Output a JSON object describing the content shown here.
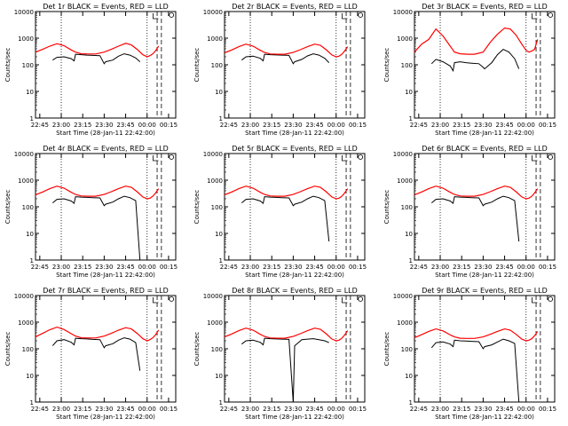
{
  "colors": {
    "events": "#000000",
    "lld": "#ff0000",
    "axes": "#000000",
    "background": "#ffffff"
  },
  "figure": {
    "xlabel": "Start Time (28-Jan-11 22:42:00)",
    "ylabel": "Counts/sec",
    "x_ticks": [
      "22:45",
      "23:00",
      "23:15",
      "23:30",
      "23:45",
      "00:00",
      "00:15"
    ],
    "y_ticks": [
      "1",
      "10",
      "100",
      "1000",
      "10000"
    ],
    "legend_text": "BLACK = Events, RED = LLD"
  },
  "chart_data": [
    {
      "type": "line",
      "title": "Det 1r BLACK = Events, RED = LLD",
      "detector": "1r",
      "xlabel": "Start Time (28-Jan-11 22:42:00)",
      "ylabel": "Counts/sec",
      "x_unit": "minutes after 22:42",
      "xlim": [
        0,
        98
      ],
      "ylim": [
        1,
        10000
      ],
      "y_log": true,
      "series": [
        {
          "name": "Events",
          "color": "#000000",
          "x": [
            12,
            15,
            20,
            25,
            27,
            28,
            32,
            36,
            40,
            45,
            48,
            49,
            54,
            58,
            62,
            66,
            70,
            73
          ],
          "values": [
            150,
            190,
            200,
            170,
            140,
            250,
            240,
            230,
            225,
            220,
            110,
            130,
            150,
            210,
            260,
            230,
            180,
            130
          ]
        },
        {
          "name": "LLD",
          "color": "#ff0000",
          "x": [
            0,
            5,
            10,
            15,
            20,
            25,
            28,
            32,
            37,
            42,
            48,
            53,
            58,
            63,
            67,
            71,
            75,
            78,
            80,
            82,
            84,
            86
          ],
          "values": [
            300,
            380,
            500,
            620,
            520,
            360,
            300,
            260,
            255,
            255,
            300,
            380,
            500,
            640,
            560,
            380,
            240,
            200,
            220,
            260,
            340,
            500
          ]
        }
      ],
      "event_gaps": [
        {
          "x": 85,
          "drop_to": null
        },
        {
          "x": 86,
          "drop_to": null
        }
      ],
      "markers_dotted": [
        18,
        78
      ],
      "markers_dashed": [
        85,
        88
      ]
    },
    {
      "type": "line",
      "title": "Det 2r BLACK = Events, RED = LLD",
      "detector": "2r",
      "xlabel": "Start Time (28-Jan-11 22:42:00)",
      "ylabel": "Counts/sec",
      "x_unit": "minutes after 22:42",
      "xlim": [
        0,
        98
      ],
      "ylim": [
        1,
        10000
      ],
      "y_log": true,
      "series": [
        {
          "name": "Events",
          "color": "#000000",
          "x": [
            12,
            15,
            20,
            25,
            27,
            28,
            32,
            36,
            40,
            45,
            48,
            49,
            54,
            58,
            62,
            66,
            70,
            73
          ],
          "values": [
            150,
            200,
            210,
            175,
            140,
            250,
            240,
            235,
            230,
            225,
            110,
            130,
            160,
            215,
            260,
            230,
            175,
            120
          ]
        },
        {
          "name": "LLD",
          "color": "#ff0000",
          "x": [
            0,
            5,
            10,
            15,
            20,
            25,
            28,
            32,
            37,
            42,
            48,
            53,
            58,
            63,
            67,
            71,
            75,
            78,
            80,
            82,
            84,
            86
          ],
          "values": [
            280,
            360,
            480,
            600,
            500,
            350,
            290,
            255,
            250,
            250,
            290,
            370,
            480,
            600,
            540,
            370,
            235,
            200,
            210,
            250,
            330,
            480
          ]
        }
      ],
      "markers_dotted": [
        18,
        78
      ],
      "markers_dashed": [
        85,
        88
      ]
    },
    {
      "type": "line",
      "title": "Det 3r BLACK = Events, RED = LLD",
      "detector": "3r",
      "xlabel": "Start Time (28-Jan-11 22:42:00)",
      "ylabel": "Counts/sec",
      "x_unit": "minutes after 22:42",
      "xlim": [
        0,
        98
      ],
      "ylim": [
        1,
        10000
      ],
      "y_log": true,
      "series": [
        {
          "name": "Events",
          "color": "#000000",
          "x": [
            12,
            15,
            20,
            25,
            27,
            28,
            32,
            36,
            40,
            45,
            48,
            49,
            54,
            58,
            62,
            66,
            70,
            73
          ],
          "values": [
            110,
            160,
            130,
            90,
            60,
            120,
            130,
            120,
            115,
            110,
            80,
            70,
            120,
            240,
            380,
            300,
            170,
            70
          ]
        },
        {
          "name": "LLD",
          "color": "#ff0000",
          "x": [
            0,
            5,
            10,
            15,
            20,
            25,
            28,
            32,
            37,
            42,
            48,
            53,
            58,
            63,
            67,
            71,
            75,
            78,
            80,
            82,
            84,
            86
          ],
          "values": [
            300,
            600,
            900,
            2200,
            1200,
            500,
            300,
            260,
            250,
            250,
            300,
            700,
            1400,
            2400,
            2200,
            1300,
            600,
            350,
            300,
            330,
            380,
            900
          ]
        }
      ],
      "markers_dotted": [
        18,
        78
      ],
      "markers_dashed": [
        85,
        88
      ]
    },
    {
      "type": "line",
      "title": "Det 4r BLACK = Events, RED = LLD",
      "detector": "4r",
      "xlabel": "Start Time (28-Jan-11 22:42:00)",
      "ylabel": "Counts/sec",
      "x_unit": "minutes after 22:42",
      "xlim": [
        0,
        98
      ],
      "ylim": [
        1,
        10000
      ],
      "y_log": true,
      "series": [
        {
          "name": "Events",
          "color": "#000000",
          "x": [
            12,
            15,
            20,
            25,
            27,
            28,
            32,
            36,
            40,
            45,
            48,
            49,
            54,
            58,
            62,
            66,
            70,
            73
          ],
          "values": [
            140,
            190,
            200,
            165,
            135,
            240,
            230,
            225,
            220,
            215,
            110,
            125,
            150,
            200,
            250,
            220,
            170,
            1
          ]
        },
        {
          "name": "LLD",
          "color": "#ff0000",
          "x": [
            0,
            5,
            10,
            15,
            20,
            25,
            28,
            32,
            37,
            42,
            48,
            53,
            58,
            63,
            67,
            71,
            75,
            78,
            80,
            82,
            84,
            86
          ],
          "values": [
            280,
            360,
            480,
            600,
            500,
            350,
            290,
            255,
            250,
            250,
            290,
            370,
            480,
            600,
            540,
            370,
            235,
            200,
            210,
            250,
            330,
            480
          ]
        }
      ],
      "markers_dotted": [
        18,
        78
      ],
      "markers_dashed": [
        85,
        88
      ]
    },
    {
      "type": "line",
      "title": "Det 5r BLACK = Events, RED = LLD",
      "detector": "5r",
      "xlabel": "Start Time (28-Jan-11 22:42:00)",
      "ylabel": "Counts/sec",
      "x_unit": "minutes after 22:42",
      "xlim": [
        0,
        98
      ],
      "ylim": [
        1,
        10000
      ],
      "y_log": true,
      "series": [
        {
          "name": "Events",
          "color": "#000000",
          "x": [
            12,
            15,
            20,
            25,
            27,
            28,
            32,
            36,
            40,
            45,
            48,
            49,
            54,
            58,
            62,
            66,
            70,
            73
          ],
          "values": [
            140,
            190,
            200,
            165,
            135,
            240,
            230,
            225,
            220,
            215,
            110,
            125,
            150,
            200,
            250,
            220,
            170,
            5
          ]
        },
        {
          "name": "LLD",
          "color": "#ff0000",
          "x": [
            0,
            5,
            10,
            15,
            20,
            25,
            28,
            32,
            37,
            42,
            48,
            53,
            58,
            63,
            67,
            71,
            75,
            78,
            80,
            82,
            84,
            86
          ],
          "values": [
            280,
            360,
            480,
            600,
            500,
            350,
            290,
            255,
            250,
            250,
            290,
            370,
            480,
            600,
            540,
            370,
            235,
            200,
            210,
            250,
            330,
            480
          ]
        }
      ],
      "markers_dotted": [
        18,
        78
      ],
      "markers_dashed": [
        85,
        88
      ]
    },
    {
      "type": "line",
      "title": "Det 6r BLACK = Events, RED = LLD",
      "detector": "6r",
      "xlabel": "Start Time (28-Jan-11 22:42:00)",
      "ylabel": "Counts/sec",
      "x_unit": "minutes after 22:42",
      "xlim": [
        0,
        98
      ],
      "ylim": [
        1,
        10000
      ],
      "y_log": true,
      "series": [
        {
          "name": "Events",
          "color": "#000000",
          "x": [
            12,
            15,
            20,
            25,
            27,
            28,
            32,
            36,
            40,
            45,
            48,
            49,
            54,
            58,
            62,
            66,
            70,
            73
          ],
          "values": [
            140,
            190,
            200,
            165,
            135,
            240,
            230,
            225,
            220,
            215,
            110,
            125,
            150,
            200,
            250,
            220,
            170,
            5
          ]
        },
        {
          "name": "LLD",
          "color": "#ff0000",
          "x": [
            0,
            5,
            10,
            15,
            20,
            25,
            28,
            32,
            37,
            42,
            48,
            53,
            58,
            63,
            67,
            71,
            75,
            78,
            80,
            82,
            84,
            86
          ],
          "values": [
            280,
            360,
            480,
            600,
            500,
            350,
            290,
            255,
            250,
            250,
            290,
            370,
            480,
            600,
            540,
            370,
            235,
            200,
            210,
            250,
            330,
            480
          ]
        }
      ],
      "markers_dotted": [
        18,
        78
      ],
      "markers_dashed": [
        85,
        88
      ]
    },
    {
      "type": "line",
      "title": "Det 7r BLACK = Events, RED = LLD",
      "detector": "7r",
      "xlabel": "Start Time (28-Jan-11 22:42:00)",
      "ylabel": "Counts/sec",
      "x_unit": "minutes after 22:42",
      "xlim": [
        0,
        98
      ],
      "ylim": [
        1,
        10000
      ],
      "y_log": true,
      "series": [
        {
          "name": "Events",
          "color": "#000000",
          "x": [
            12,
            15,
            20,
            25,
            27,
            28,
            32,
            36,
            40,
            45,
            48,
            49,
            54,
            58,
            62,
            66,
            70,
            73
          ],
          "values": [
            130,
            200,
            220,
            175,
            140,
            250,
            240,
            235,
            225,
            220,
            110,
            130,
            155,
            210,
            260,
            230,
            170,
            15
          ]
        },
        {
          "name": "LLD",
          "color": "#ff0000",
          "x": [
            0,
            5,
            10,
            15,
            20,
            25,
            28,
            32,
            37,
            42,
            48,
            53,
            58,
            63,
            67,
            71,
            75,
            78,
            80,
            82,
            84,
            86
          ],
          "values": [
            280,
            380,
            520,
            650,
            530,
            370,
            300,
            260,
            255,
            255,
            300,
            380,
            500,
            620,
            560,
            380,
            240,
            200,
            220,
            260,
            340,
            500
          ]
        }
      ],
      "markers_dotted": [
        18,
        78
      ],
      "markers_dashed": [
        85,
        88
      ]
    },
    {
      "type": "line",
      "title": "Det 8r BLACK = Events, RED = LLD",
      "detector": "8r",
      "xlabel": "Start Time (28-Jan-11 22:42:00)",
      "ylabel": "Counts/sec",
      "x_unit": "minutes after 22:42",
      "xlim": [
        0,
        98
      ],
      "ylim": [
        1,
        10000
      ],
      "y_log": true,
      "series": [
        {
          "name": "Events",
          "color": "#000000",
          "x": [
            12,
            15,
            20,
            25,
            27,
            28,
            32,
            36,
            40,
            45,
            48,
            49,
            54,
            58,
            62,
            66,
            70,
            73
          ],
          "values": [
            150,
            200,
            210,
            175,
            140,
            250,
            240,
            235,
            230,
            225,
            1,
            130,
            220,
            230,
            240,
            220,
            200,
            170
          ]
        },
        {
          "name": "LLD",
          "color": "#ff0000",
          "x": [
            0,
            5,
            10,
            15,
            20,
            25,
            28,
            32,
            37,
            42,
            48,
            53,
            58,
            63,
            67,
            71,
            75,
            78,
            80,
            82,
            84,
            86
          ],
          "values": [
            280,
            360,
            480,
            600,
            500,
            350,
            290,
            255,
            250,
            250,
            290,
            370,
            480,
            600,
            540,
            370,
            235,
            200,
            210,
            250,
            330,
            480
          ]
        }
      ],
      "markers_dotted": [
        18,
        78
      ],
      "markers_dashed": [
        85,
        88
      ]
    },
    {
      "type": "line",
      "title": "Det 9r BLACK = Events, RED = LLD",
      "detector": "9r",
      "xlabel": "Start Time (28-Jan-11 22:42:00)",
      "ylabel": "Counts/sec",
      "x_unit": "minutes after 22:42",
      "xlim": [
        0,
        98
      ],
      "ylim": [
        1,
        10000
      ],
      "y_log": true,
      "series": [
        {
          "name": "Events",
          "color": "#000000",
          "x": [
            12,
            15,
            20,
            25,
            27,
            28,
            32,
            36,
            40,
            45,
            48,
            49,
            54,
            58,
            62,
            66,
            70,
            73
          ],
          "values": [
            110,
            170,
            180,
            150,
            120,
            210,
            200,
            195,
            190,
            185,
            100,
            120,
            140,
            180,
            230,
            200,
            160,
            1
          ]
        },
        {
          "name": "LLD",
          "color": "#ff0000",
          "x": [
            0,
            5,
            10,
            15,
            20,
            25,
            28,
            32,
            37,
            42,
            48,
            53,
            58,
            63,
            67,
            71,
            75,
            78,
            80,
            82,
            84,
            86
          ],
          "values": [
            260,
            340,
            450,
            560,
            470,
            330,
            280,
            250,
            245,
            245,
            280,
            350,
            450,
            560,
            500,
            350,
            230,
            200,
            210,
            240,
            310,
            450
          ]
        }
      ],
      "markers_dotted": [
        18,
        78
      ],
      "markers_dashed": [
        85,
        88
      ]
    }
  ]
}
